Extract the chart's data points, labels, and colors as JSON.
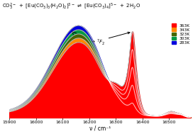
{
  "xlabel": "ν / cm⁻¹",
  "xmin": 15900,
  "xmax": 16580,
  "ymin": 0,
  "legend_labels": [
    "363K",
    "343K",
    "323K",
    "303K",
    "283K"
  ],
  "legend_colors": [
    "#ff0000",
    "#ff8800",
    "#446600",
    "#009944",
    "#0000dd"
  ],
  "xticks": [
    15900,
    16000,
    16100,
    16200,
    16300,
    16400,
    16500
  ],
  "background": "#ffffff"
}
